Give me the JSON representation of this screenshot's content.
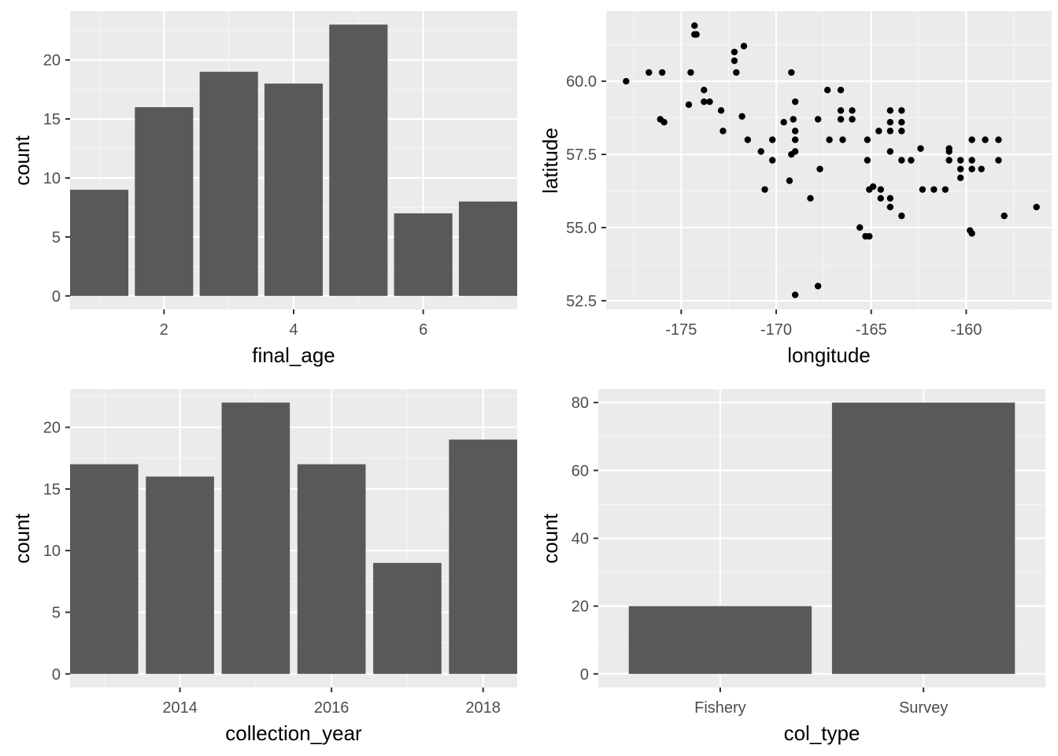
{
  "theme": {
    "panel_bg": "#ebebeb",
    "grid_major": "#ffffff",
    "grid_minor": "#f5f5f5",
    "bar_fill": "#595959",
    "point_fill": "#000000",
    "tick_text": "#4d4d4d",
    "axis_title": "#000000"
  },
  "chart_data": [
    {
      "id": "age",
      "type": "bar",
      "xlabel": "final_age",
      "ylabel": "count",
      "x_values": [
        1,
        2,
        3,
        4,
        5,
        6,
        7
      ],
      "values": [
        9,
        16,
        19,
        18,
        23,
        7,
        8
      ],
      "xlim": [
        0.55,
        7.45
      ],
      "ylim": [
        -1.15,
        24.15
      ],
      "x_ticks": [
        2,
        4,
        6
      ],
      "x_tick_labels": [
        "2",
        "4",
        "6"
      ],
      "y_ticks": [
        0,
        5,
        10,
        15,
        20
      ],
      "y_tick_labels": [
        "0",
        "5",
        "10",
        "15",
        "20"
      ],
      "grid": true
    },
    {
      "id": "location",
      "type": "scatter",
      "xlabel": "longitude",
      "ylabel": "latitude",
      "xlim": [
        -178.95,
        -155.5
      ],
      "ylim": [
        52.2,
        62.4
      ],
      "x_ticks": [
        -175,
        -170,
        -165,
        -160
      ],
      "x_tick_labels": [
        "-175",
        "-170",
        "-165",
        "-160"
      ],
      "y_ticks": [
        52.5,
        55.0,
        57.5,
        60.0
      ],
      "y_tick_labels": [
        "52.5",
        "55.0",
        "57.5",
        "60.0"
      ],
      "grid": true,
      "points": [
        [
          -177.9,
          60.0
        ],
        [
          -176.7,
          60.3
        ],
        [
          -176.0,
          60.3
        ],
        [
          -176.1,
          58.7
        ],
        [
          -175.9,
          58.6
        ],
        [
          -174.6,
          59.2
        ],
        [
          -174.5,
          60.3
        ],
        [
          -174.3,
          61.9
        ],
        [
          -174.3,
          61.6
        ],
        [
          -174.2,
          61.6
        ],
        [
          -173.8,
          59.7
        ],
        [
          -173.8,
          59.3
        ],
        [
          -173.5,
          59.3
        ],
        [
          -172.9,
          59.0
        ],
        [
          -172.8,
          58.3
        ],
        [
          -172.2,
          61.0
        ],
        [
          -172.2,
          60.7
        ],
        [
          -172.1,
          60.3
        ],
        [
          -171.7,
          61.2
        ],
        [
          -171.8,
          58.8
        ],
        [
          -171.5,
          58.0
        ],
        [
          -170.8,
          57.6
        ],
        [
          -170.6,
          56.3
        ],
        [
          -170.2,
          58.0
        ],
        [
          -170.2,
          57.3
        ],
        [
          -169.6,
          58.6
        ],
        [
          -169.3,
          56.6
        ],
        [
          -169.2,
          60.3
        ],
        [
          -169.0,
          59.3
        ],
        [
          -169.1,
          58.7
        ],
        [
          -169.0,
          58.3
        ],
        [
          -169.0,
          58.0
        ],
        [
          -169.0,
          57.6
        ],
        [
          -169.2,
          57.5
        ],
        [
          -169.0,
          52.7
        ],
        [
          -167.8,
          58.7
        ],
        [
          -167.7,
          57.0
        ],
        [
          -167.8,
          53.0
        ],
        [
          -168.2,
          56.0
        ],
        [
          -167.3,
          59.7
        ],
        [
          -167.2,
          58.0
        ],
        [
          -166.6,
          59.7
        ],
        [
          -166.6,
          59.0
        ],
        [
          -166.6,
          58.7
        ],
        [
          -166.5,
          58.0
        ],
        [
          -166.0,
          59.0
        ],
        [
          -166.0,
          58.7
        ],
        [
          -165.6,
          55.0
        ],
        [
          -165.3,
          54.7
        ],
        [
          -165.1,
          54.7
        ],
        [
          -165.2,
          58.0
        ],
        [
          -165.2,
          57.3
        ],
        [
          -165.1,
          56.3
        ],
        [
          -164.9,
          56.4
        ],
        [
          -164.6,
          58.3
        ],
        [
          -164.5,
          56.3
        ],
        [
          -164.5,
          56.0
        ],
        [
          -164.0,
          59.0
        ],
        [
          -164.0,
          58.6
        ],
        [
          -164.0,
          58.3
        ],
        [
          -164.0,
          57.6
        ],
        [
          -164.0,
          56.0
        ],
        [
          -164.0,
          55.7
        ],
        [
          -163.4,
          59.0
        ],
        [
          -163.4,
          58.6
        ],
        [
          -163.4,
          58.3
        ],
        [
          -163.4,
          57.3
        ],
        [
          -163.4,
          55.4
        ],
        [
          -162.9,
          57.3
        ],
        [
          -162.4,
          57.7
        ],
        [
          -162.3,
          56.3
        ],
        [
          -161.7,
          56.3
        ],
        [
          -161.1,
          56.3
        ],
        [
          -160.9,
          57.7
        ],
        [
          -160.9,
          57.6
        ],
        [
          -160.9,
          57.3
        ],
        [
          -160.3,
          57.3
        ],
        [
          -160.3,
          57.0
        ],
        [
          -160.3,
          56.7
        ],
        [
          -159.8,
          54.9
        ],
        [
          -159.7,
          54.8
        ],
        [
          -159.7,
          58.0
        ],
        [
          -159.7,
          57.3
        ],
        [
          -159.7,
          57.0
        ],
        [
          -159.2,
          57.0
        ],
        [
          -159.0,
          58.0
        ],
        [
          -158.3,
          58.0
        ],
        [
          -158.3,
          57.3
        ],
        [
          -158.0,
          55.4
        ],
        [
          -156.3,
          55.7
        ]
      ]
    },
    {
      "id": "year",
      "type": "bar",
      "xlabel": "collection_year",
      "ylabel": "count",
      "x_values": [
        2013,
        2014,
        2015,
        2016,
        2017,
        2018
      ],
      "values": [
        17,
        16,
        22,
        17,
        9,
        19
      ],
      "xlim": [
        2012.55,
        2018.45
      ],
      "ylim": [
        -1.1,
        23.1
      ],
      "x_ticks": [
        2014,
        2016,
        2018
      ],
      "x_tick_labels": [
        "2014",
        "2016",
        "2018"
      ],
      "y_ticks": [
        0,
        5,
        10,
        15,
        20
      ],
      "y_tick_labels": [
        "0",
        "5",
        "10",
        "15",
        "20"
      ],
      "grid": true
    },
    {
      "id": "type",
      "type": "bar",
      "xlabel": "col_type",
      "ylabel": "count",
      "categories": [
        "Fishery",
        "Survey"
      ],
      "values": [
        20,
        80
      ],
      "xlim": [
        0.4,
        2.6
      ],
      "ylim": [
        -4,
        84
      ],
      "x_ticks": [
        1,
        2
      ],
      "x_tick_labels": [
        "Fishery",
        "Survey"
      ],
      "y_ticks": [
        0,
        20,
        40,
        60,
        80
      ],
      "y_tick_labels": [
        "0",
        "20",
        "40",
        "60",
        "80"
      ],
      "grid": true
    }
  ]
}
